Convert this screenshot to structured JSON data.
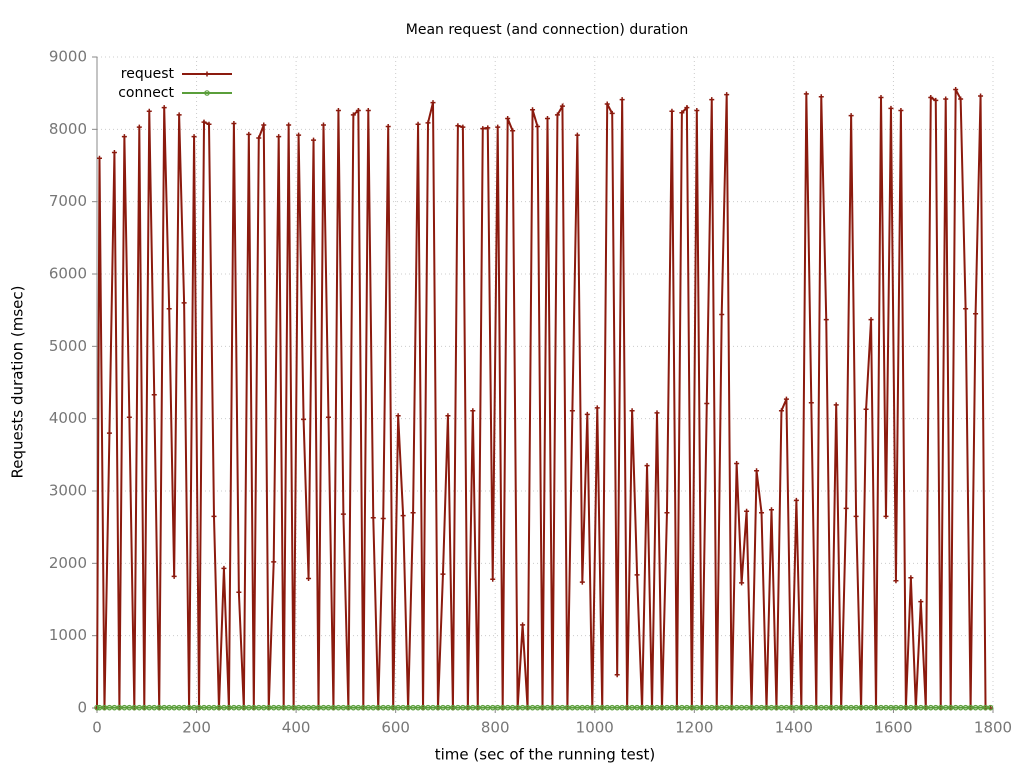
{
  "chart_data": {
    "type": "line",
    "title": "Mean request (and connection) duration",
    "xlabel": "time (sec of the running test)",
    "ylabel": "Requests duration (msec)",
    "xlim": [
      0,
      1800
    ],
    "xticks": [
      0,
      200,
      400,
      600,
      800,
      1000,
      1200,
      1400,
      1600,
      1800
    ],
    "ylim": [
      0,
      9000
    ],
    "yticks": [
      0,
      1000,
      2000,
      3000,
      4000,
      5000,
      6000,
      7000,
      8000,
      9000
    ],
    "grid": true,
    "legend": "top-left",
    "x": [
      0,
      5,
      15,
      25,
      35,
      45,
      55,
      65,
      75,
      85,
      95,
      105,
      115,
      125,
      135,
      145,
      155,
      165,
      175,
      185,
      195,
      205,
      215,
      225,
      235,
      245,
      255,
      265,
      275,
      285,
      295,
      305,
      315,
      325,
      335,
      345,
      355,
      365,
      375,
      385,
      395,
      405,
      415,
      425,
      435,
      445,
      455,
      465,
      475,
      485,
      495,
      505,
      515,
      525,
      535,
      545,
      555,
      565,
      575,
      585,
      595,
      605,
      615,
      625,
      635,
      645,
      655,
      665,
      675,
      685,
      695,
      705,
      715,
      725,
      735,
      745,
      755,
      765,
      775,
      785,
      795,
      805,
      815,
      825,
      835,
      845,
      855,
      865,
      875,
      885,
      895,
      905,
      915,
      925,
      935,
      945,
      955,
      965,
      975,
      985,
      995,
      1005,
      1015,
      1025,
      1035,
      1045,
      1055,
      1065,
      1075,
      1085,
      1095,
      1105,
      1115,
      1125,
      1135,
      1145,
      1155,
      1165,
      1175,
      1185,
      1195,
      1205,
      1215,
      1225,
      1235,
      1245,
      1255,
      1265,
      1275,
      1285,
      1295,
      1305,
      1315,
      1325,
      1335,
      1345,
      1355,
      1365,
      1375,
      1385,
      1395,
      1405,
      1415,
      1425,
      1435,
      1445,
      1455,
      1465,
      1475,
      1485,
      1495,
      1505,
      1515,
      1525,
      1535,
      1545,
      1555,
      1565,
      1575,
      1585,
      1595,
      1605,
      1615,
      1625,
      1635,
      1645,
      1655,
      1665,
      1675,
      1685,
      1695,
      1705,
      1715,
      1725,
      1735,
      1745,
      1755,
      1765,
      1775,
      1785,
      1795
    ],
    "series": [
      {
        "name": "request",
        "color": "#8b1a0e",
        "marker": "plus",
        "values": [
          0,
          7600,
          0,
          3800,
          7680,
          0,
          7900,
          4020,
          0,
          8030,
          0,
          8250,
          4330,
          0,
          8300,
          5520,
          1820,
          8200,
          5600,
          0,
          7900,
          0,
          8100,
          8070,
          2650,
          0,
          1930,
          0,
          8080,
          1600,
          0,
          7930,
          0,
          7880,
          8060,
          0,
          2020,
          7900,
          0,
          8060,
          0,
          7920,
          3990,
          1790,
          7850,
          0,
          8060,
          4020,
          0,
          8260,
          2680,
          0,
          8200,
          8260,
          0,
          8260,
          2630,
          0,
          2620,
          8040,
          0,
          4040,
          2660,
          0,
          2700,
          8070,
          0,
          8090,
          8370,
          0,
          1850,
          4040,
          0,
          8050,
          8030,
          0,
          4110,
          0,
          8010,
          8020,
          1780,
          8030,
          0,
          8150,
          7980,
          0,
          1150,
          0,
          8270,
          8040,
          0,
          8150,
          0,
          8200,
          8320,
          0,
          4110,
          7920,
          1740,
          4060,
          0,
          4150,
          0,
          8350,
          8220,
          460,
          8410,
          0,
          4110,
          1840,
          0,
          3350,
          0,
          4080,
          0,
          2700,
          8250,
          0,
          8230,
          8300,
          0,
          8260,
          0,
          4210,
          8410,
          0,
          5440,
          8480,
          0,
          3380,
          1730,
          2720,
          0,
          3280,
          2700,
          0,
          2740,
          0,
          4110,
          4270,
          0,
          2870,
          0,
          8490,
          4220,
          0,
          8450,
          5370,
          0,
          4190,
          0,
          2760,
          8190,
          2650,
          0,
          4130,
          5370,
          0,
          8440,
          2650,
          8290,
          1760,
          8260,
          0,
          1800,
          0,
          1470,
          0,
          8440,
          8400,
          0,
          8420,
          0,
          8550,
          8420,
          5520,
          0,
          5450,
          8460,
          0,
          0
        ]
      },
      {
        "name": "connect",
        "color": "#5a9e3a",
        "marker": "circle",
        "values": [
          5,
          5,
          5,
          5,
          5,
          5,
          5,
          5,
          5,
          5,
          5,
          5,
          5,
          5,
          5,
          5,
          5,
          5,
          5,
          5,
          5,
          5,
          5,
          5,
          5,
          5,
          5,
          5,
          5,
          5,
          5,
          5,
          5,
          5,
          5,
          5,
          5,
          5,
          5,
          5,
          5,
          5,
          5,
          5,
          5,
          5,
          5,
          5,
          5,
          5,
          5,
          5,
          5,
          5,
          5,
          5,
          5,
          5,
          5,
          5,
          5,
          5,
          5,
          5,
          5,
          5,
          5,
          5,
          5,
          5,
          5,
          5,
          5,
          5,
          5,
          5,
          5,
          5,
          5,
          5,
          5,
          5,
          5,
          5,
          5,
          5,
          5,
          5,
          5,
          5,
          5,
          5,
          5,
          5,
          5,
          5,
          5,
          5,
          5,
          5,
          5,
          5,
          5,
          5,
          5,
          5,
          5,
          5,
          5,
          5,
          5,
          5,
          5,
          5,
          5,
          5,
          5,
          5,
          5,
          5,
          5,
          5,
          5,
          5,
          5,
          5,
          5,
          5,
          5,
          5,
          5,
          5,
          5,
          5,
          5,
          5,
          5,
          5,
          5,
          5,
          5,
          5,
          5,
          5,
          5,
          5,
          5,
          5,
          5,
          5,
          5,
          5,
          5,
          5,
          5,
          5,
          5,
          5,
          5,
          5,
          5,
          5,
          5,
          5,
          5,
          5,
          5,
          5,
          5,
          5,
          5,
          5,
          5,
          5,
          5,
          5,
          5,
          5,
          5,
          5,
          5
        ]
      }
    ]
  }
}
